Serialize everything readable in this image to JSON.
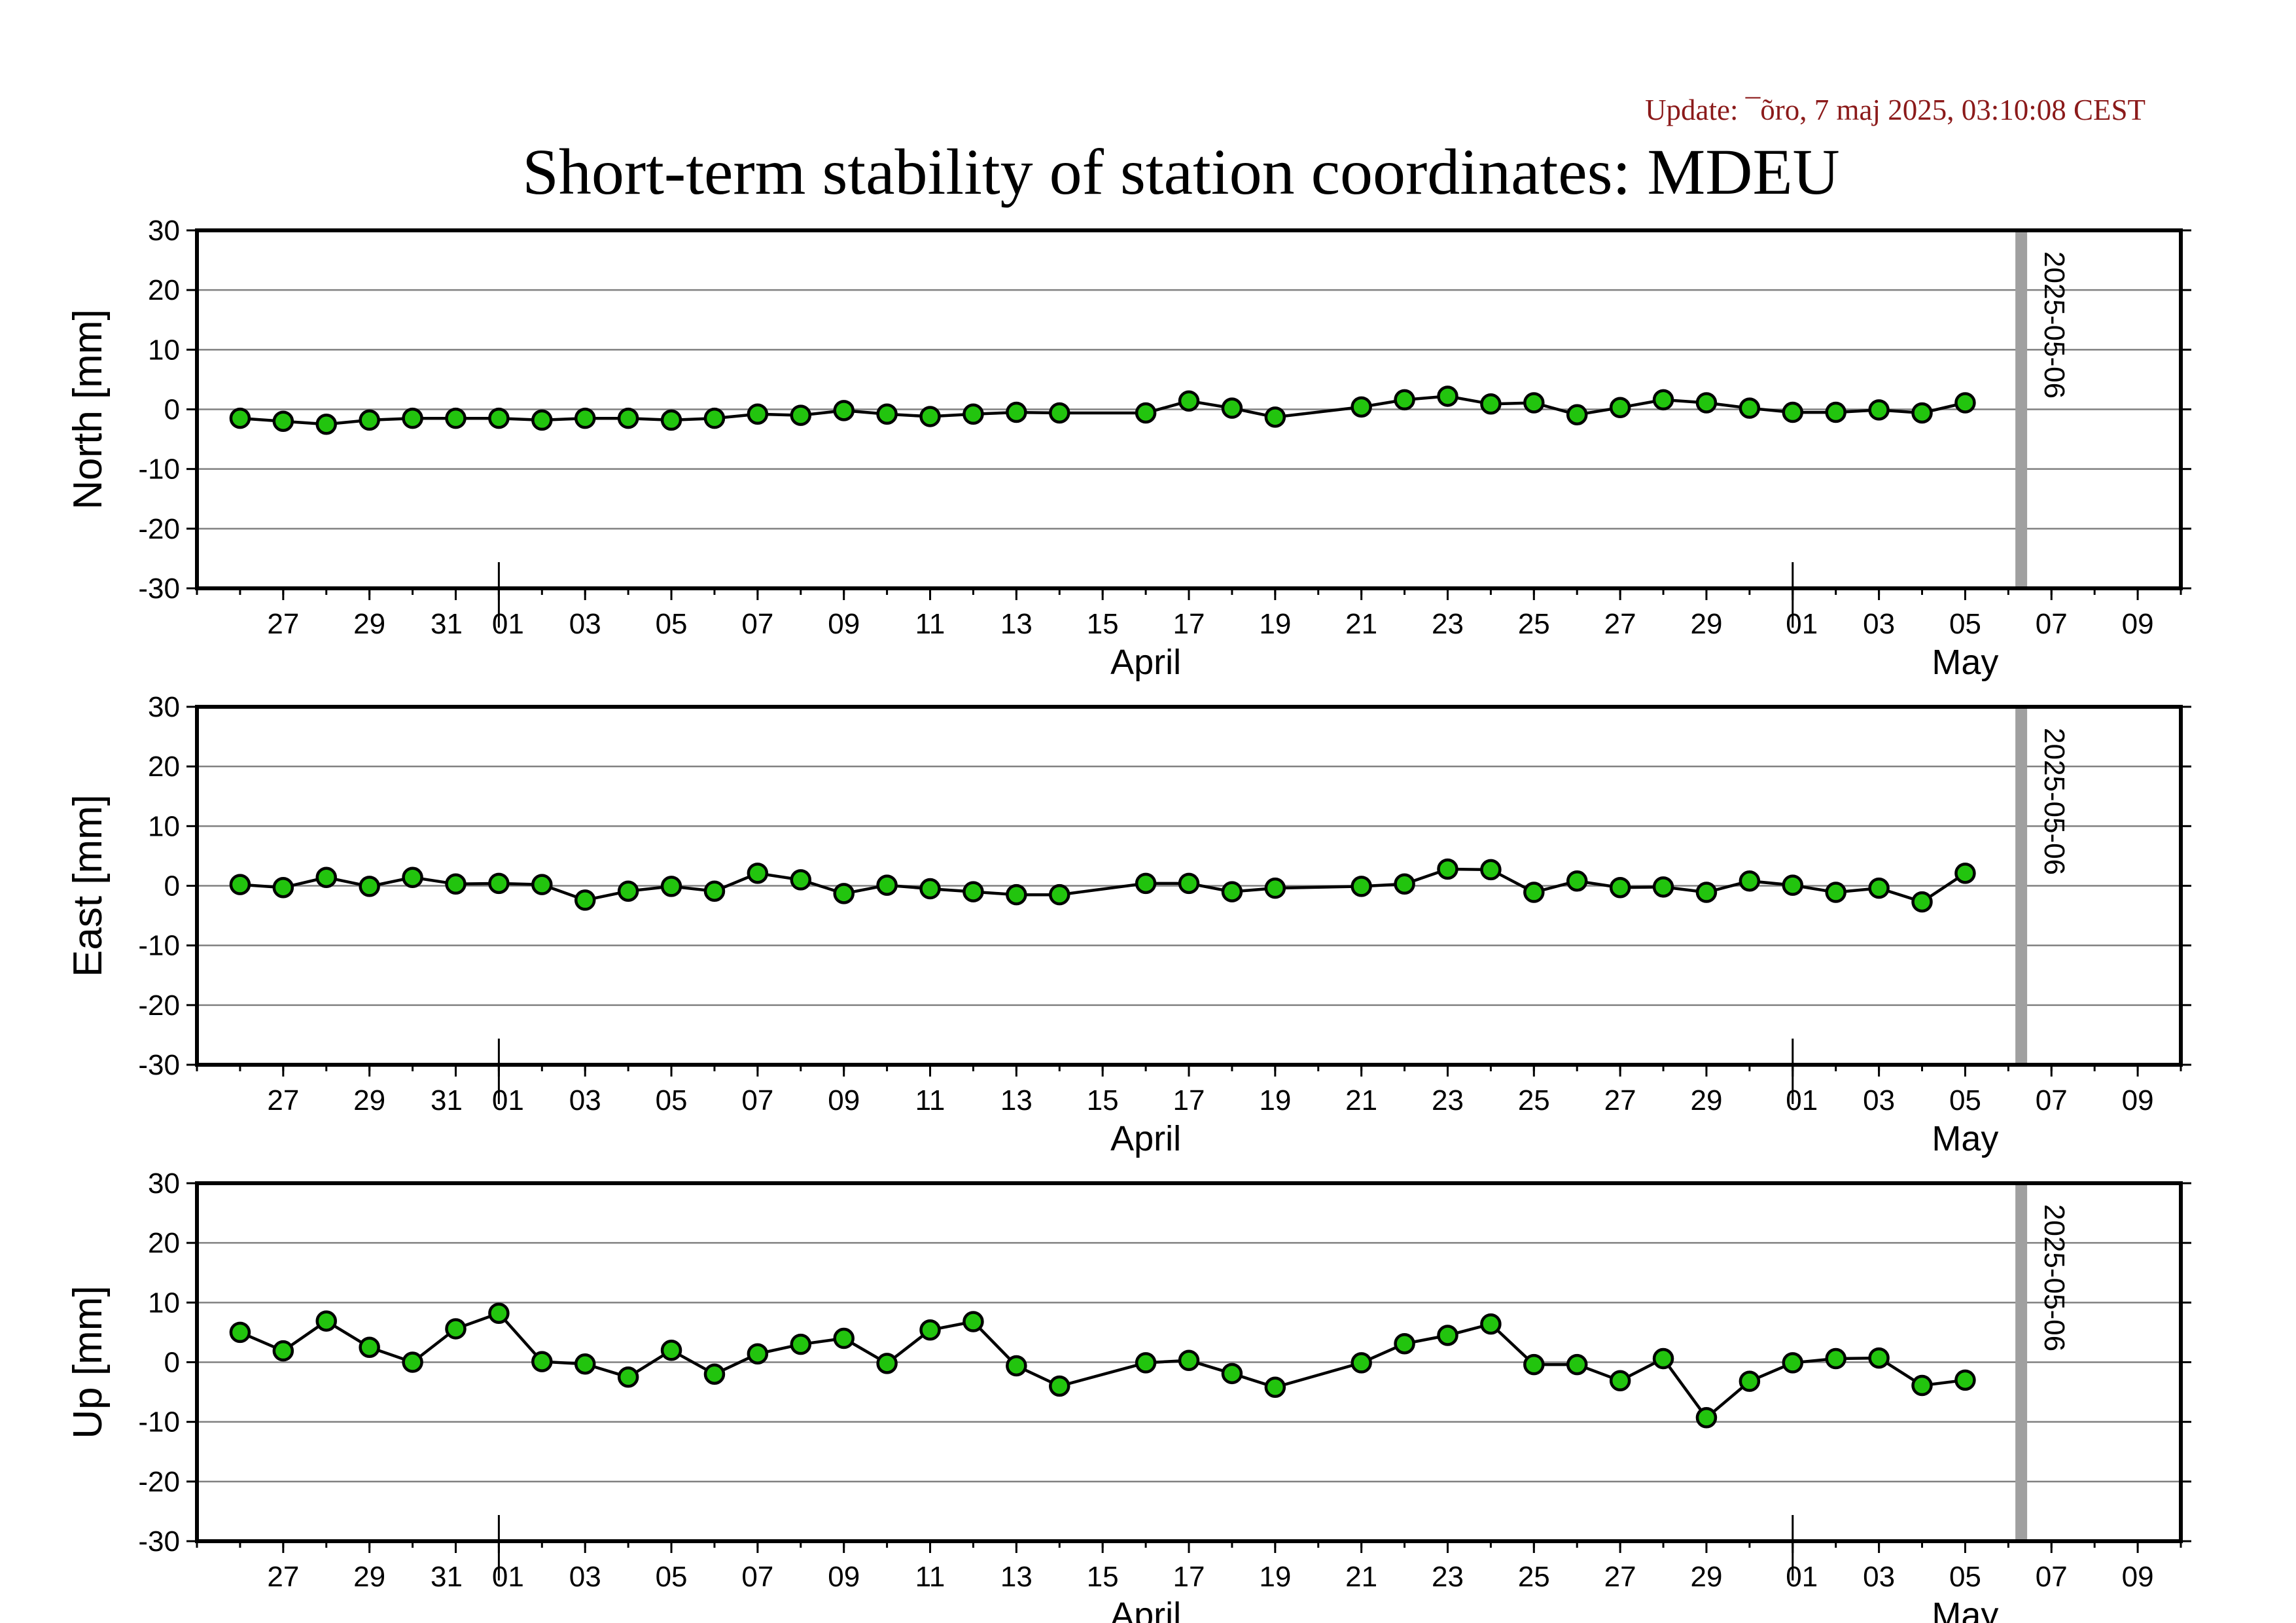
{
  "update_text": "Update: ¯õro, 7 maj 2025, 03:10:08 CEST",
  "title": "Short-term stability of station coordinates: MDEU",
  "colors": {
    "update": "#8b1a1a",
    "marker_fill": "#22c40e",
    "marker_stroke": "#000000",
    "line": "#000000",
    "grid": "#808080",
    "vline": "#a0a0a0",
    "frame": "#000000"
  },
  "x_axis": {
    "start": "2025-03-25",
    "end": "2025-05-10",
    "tick_labels": [
      {
        "date": "2025-03-27",
        "label": "27"
      },
      {
        "date": "2025-03-29",
        "label": "29"
      },
      {
        "date": "2025-03-31",
        "label": "31"
      },
      {
        "date": "2025-04-01",
        "label": "01"
      },
      {
        "date": "2025-04-03",
        "label": "03"
      },
      {
        "date": "2025-04-05",
        "label": "05"
      },
      {
        "date": "2025-04-07",
        "label": "07"
      },
      {
        "date": "2025-04-09",
        "label": "09"
      },
      {
        "date": "2025-04-11",
        "label": "11"
      },
      {
        "date": "2025-04-13",
        "label": "13"
      },
      {
        "date": "2025-04-15",
        "label": "15"
      },
      {
        "date": "2025-04-17",
        "label": "17"
      },
      {
        "date": "2025-04-19",
        "label": "19"
      },
      {
        "date": "2025-04-21",
        "label": "21"
      },
      {
        "date": "2025-04-23",
        "label": "23"
      },
      {
        "date": "2025-04-25",
        "label": "25"
      },
      {
        "date": "2025-04-27",
        "label": "27"
      },
      {
        "date": "2025-04-29",
        "label": "29"
      },
      {
        "date": "2025-05-01",
        "label": "01"
      },
      {
        "date": "2025-05-03",
        "label": "03"
      },
      {
        "date": "2025-05-05",
        "label": "05"
      },
      {
        "date": "2025-05-07",
        "label": "07"
      },
      {
        "date": "2025-05-09",
        "label": "09"
      }
    ],
    "month_labels": [
      {
        "date": "2025-04-16",
        "label": "April"
      },
      {
        "date": "2025-05-05",
        "label": "May"
      }
    ],
    "month_boundaries": [
      "2025-04-01",
      "2025-05-01"
    ]
  },
  "chart_data": [
    {
      "type": "line",
      "ylabel": "North [mm]",
      "ylim": [
        -30,
        30
      ],
      "yticks": [
        30,
        20,
        10,
        0,
        -10,
        -20,
        -30
      ],
      "grid": true,
      "marker_line": {
        "date": "2025-05-06",
        "label": "2025-05-06"
      },
      "series": [
        {
          "x": [
            "2025-03-26",
            "2025-03-27",
            "2025-03-28",
            "2025-03-29",
            "2025-03-30",
            "2025-03-31",
            "2025-04-01",
            "2025-04-02",
            "2025-04-03",
            "2025-04-04",
            "2025-04-05",
            "2025-04-06",
            "2025-04-07",
            "2025-04-08",
            "2025-04-09",
            "2025-04-10",
            "2025-04-11",
            "2025-04-12",
            "2025-04-13",
            "2025-04-14",
            "2025-04-16",
            "2025-04-17",
            "2025-04-18",
            "2025-04-19",
            "2025-04-21",
            "2025-04-22",
            "2025-04-23",
            "2025-04-24",
            "2025-04-25",
            "2025-04-26",
            "2025-04-27",
            "2025-04-28",
            "2025-04-29",
            "2025-04-30",
            "2025-05-01",
            "2025-05-02",
            "2025-05-03",
            "2025-05-04",
            "2025-05-05"
          ],
          "y": [
            -1.5,
            -2.0,
            -2.5,
            -1.8,
            -1.5,
            -1.5,
            -1.5,
            -1.8,
            -1.5,
            -1.5,
            -1.8,
            -1.5,
            -0.8,
            -1.0,
            -0.2,
            -0.8,
            -1.2,
            -0.8,
            -0.5,
            -0.6,
            -0.6,
            1.4,
            0.2,
            -1.3,
            0.4,
            1.6,
            2.2,
            0.9,
            1.1,
            -0.9,
            0.3,
            1.6,
            1.1,
            0.2,
            -0.5,
            -0.5,
            -0.1,
            -0.6,
            1.1
          ]
        }
      ]
    },
    {
      "type": "line",
      "ylabel": "East [mm]",
      "ylim": [
        -30,
        30
      ],
      "yticks": [
        30,
        20,
        10,
        0,
        -10,
        -20,
        -30
      ],
      "grid": true,
      "marker_line": {
        "date": "2025-05-06",
        "label": "2025-05-06"
      },
      "series": [
        {
          "x": [
            "2025-03-26",
            "2025-03-27",
            "2025-03-28",
            "2025-03-29",
            "2025-03-30",
            "2025-03-31",
            "2025-04-01",
            "2025-04-02",
            "2025-04-03",
            "2025-04-04",
            "2025-04-05",
            "2025-04-06",
            "2025-04-07",
            "2025-04-08",
            "2025-04-09",
            "2025-04-10",
            "2025-04-11",
            "2025-04-12",
            "2025-04-13",
            "2025-04-14",
            "2025-04-16",
            "2025-04-17",
            "2025-04-18",
            "2025-04-19",
            "2025-04-21",
            "2025-04-22",
            "2025-04-23",
            "2025-04-24",
            "2025-04-25",
            "2025-04-26",
            "2025-04-27",
            "2025-04-28",
            "2025-04-29",
            "2025-04-30",
            "2025-05-01",
            "2025-05-02",
            "2025-05-03",
            "2025-05-04",
            "2025-05-05"
          ],
          "y": [
            0.2,
            -0.3,
            1.4,
            -0.1,
            1.4,
            0.3,
            0.4,
            0.2,
            -2.4,
            -0.9,
            -0.1,
            -0.9,
            2.1,
            1.0,
            -1.3,
            0.1,
            -0.5,
            -1.0,
            -1.5,
            -1.5,
            0.4,
            0.4,
            -1.0,
            -0.4,
            -0.1,
            0.3,
            2.8,
            2.7,
            -1.1,
            0.8,
            -0.3,
            -0.2,
            -1.1,
            0.8,
            0.1,
            -1.1,
            -0.4,
            -2.7,
            2.1
          ]
        }
      ]
    },
    {
      "type": "line",
      "ylabel": "Up [mm]",
      "ylim": [
        -30,
        30
      ],
      "yticks": [
        30,
        20,
        10,
        0,
        -10,
        -20,
        -30
      ],
      "grid": true,
      "marker_line": {
        "date": "2025-05-06",
        "label": "2025-05-06"
      },
      "series": [
        {
          "x": [
            "2025-03-26",
            "2025-03-27",
            "2025-03-28",
            "2025-03-29",
            "2025-03-30",
            "2025-03-31",
            "2025-04-01",
            "2025-04-02",
            "2025-04-03",
            "2025-04-04",
            "2025-04-05",
            "2025-04-06",
            "2025-04-07",
            "2025-04-08",
            "2025-04-09",
            "2025-04-10",
            "2025-04-11",
            "2025-04-12",
            "2025-04-13",
            "2025-04-14",
            "2025-04-16",
            "2025-04-17",
            "2025-04-18",
            "2025-04-19",
            "2025-04-21",
            "2025-04-22",
            "2025-04-23",
            "2025-04-24",
            "2025-04-25",
            "2025-04-26",
            "2025-04-27",
            "2025-04-28",
            "2025-04-29",
            "2025-04-30",
            "2025-05-01",
            "2025-05-02",
            "2025-05-03",
            "2025-05-04",
            "2025-05-05"
          ],
          "y": [
            5.0,
            1.9,
            6.9,
            2.5,
            0.0,
            5.6,
            8.2,
            0.1,
            -0.3,
            -2.5,
            2.0,
            -2.0,
            1.4,
            3.0,
            4.0,
            -0.2,
            5.4,
            6.8,
            -0.6,
            -4.0,
            -0.1,
            0.3,
            -1.9,
            -4.2,
            -0.1,
            3.1,
            4.5,
            6.4,
            -0.4,
            -0.4,
            -3.1,
            0.6,
            -9.3,
            -3.2,
            -0.1,
            0.6,
            0.7,
            -3.9,
            -3.0
          ]
        }
      ]
    }
  ]
}
